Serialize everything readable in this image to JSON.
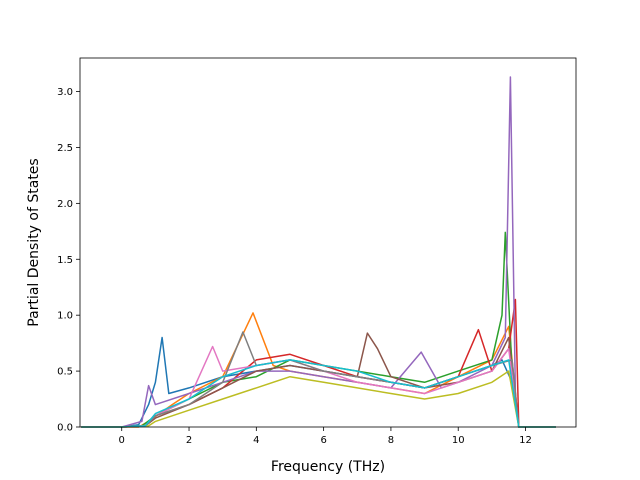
{
  "chart_data": {
    "type": "line",
    "xlabel": "Frequency (THz)",
    "ylabel": "Partial Density of States",
    "xlim": [
      -1.24,
      13.5
    ],
    "ylim": [
      0.0,
      3.3
    ],
    "x_ticks": [
      0,
      2,
      4,
      6,
      8,
      10,
      12
    ],
    "x_tick_labels": [
      "0",
      "2",
      "4",
      "6",
      "8",
      "10",
      "12"
    ],
    "y_ticks": [
      0.0,
      0.5,
      1.0,
      1.5,
      2.0,
      2.5,
      3.0
    ],
    "y_tick_labels": [
      "0.0",
      "0.5",
      "1.0",
      "1.5",
      "2.0",
      "2.5",
      "3.0"
    ],
    "grid": false,
    "legend": "none",
    "palette": [
      "#1f77b4",
      "#ff7f0e",
      "#2ca02c",
      "#d62728",
      "#9467bd",
      "#8c564b",
      "#e377c2",
      "#7f7f7f",
      "#bcbd22",
      "#17becf"
    ],
    "series": [
      {
        "x": [
          -1.2,
          0.0,
          0.5,
          0.8,
          1.0,
          1.2,
          1.4,
          2.0,
          3.0,
          4.0,
          5.0,
          6.0,
          7.0,
          8.0,
          9.0,
          10.0,
          10.5,
          11.0,
          11.3,
          11.6,
          11.8,
          12.0,
          12.9
        ],
        "y": [
          0.0,
          0.0,
          0.02,
          0.2,
          0.4,
          0.8,
          0.3,
          0.35,
          0.45,
          0.5,
          0.55,
          0.5,
          0.45,
          0.4,
          0.35,
          0.45,
          0.5,
          0.55,
          0.6,
          0.4,
          0.0,
          0.0,
          0.0
        ]
      },
      {
        "x": [
          -1.2,
          0.0,
          0.5,
          0.8,
          1.5,
          2.0,
          3.0,
          3.9,
          4.5,
          5.0,
          6.0,
          7.0,
          8.0,
          9.0,
          10.0,
          11.0,
          11.5,
          11.8,
          12.0,
          12.9
        ],
        "y": [
          0.0,
          0.0,
          0.0,
          0.05,
          0.2,
          0.3,
          0.45,
          1.02,
          0.55,
          0.5,
          0.45,
          0.4,
          0.35,
          0.3,
          0.45,
          0.6,
          0.9,
          0.0,
          0.0,
          0.0
        ]
      },
      {
        "x": [
          -1.2,
          0.0,
          0.6,
          1.0,
          2.0,
          3.0,
          4.0,
          5.0,
          6.0,
          7.0,
          8.0,
          9.0,
          10.0,
          11.0,
          11.3,
          11.4,
          11.6,
          11.8,
          12.0,
          12.9
        ],
        "y": [
          0.0,
          0.0,
          0.01,
          0.1,
          0.25,
          0.4,
          0.45,
          0.6,
          0.55,
          0.5,
          0.45,
          0.4,
          0.5,
          0.6,
          1.0,
          1.74,
          0.5,
          0.0,
          0.0,
          0.0
        ]
      },
      {
        "x": [
          -1.2,
          0.0,
          0.7,
          1.0,
          2.0,
          3.0,
          4.0,
          5.0,
          6.0,
          7.0,
          8.0,
          9.0,
          10.0,
          10.6,
          11.0,
          11.5,
          11.7,
          11.8,
          12.0,
          12.9
        ],
        "y": [
          0.0,
          0.0,
          0.01,
          0.1,
          0.2,
          0.35,
          0.6,
          0.65,
          0.55,
          0.45,
          0.4,
          0.35,
          0.45,
          0.87,
          0.5,
          0.7,
          1.14,
          0.0,
          0.0,
          0.0
        ]
      },
      {
        "x": [
          -1.2,
          0.0,
          0.6,
          0.8,
          1.0,
          2.0,
          3.0,
          4.0,
          5.0,
          6.0,
          7.0,
          8.0,
          8.9,
          9.5,
          10.0,
          11.0,
          11.4,
          11.55,
          11.7,
          11.8,
          12.0,
          12.9
        ],
        "y": [
          0.0,
          0.0,
          0.05,
          0.37,
          0.2,
          0.3,
          0.4,
          0.5,
          0.5,
          0.45,
          0.4,
          0.35,
          0.67,
          0.35,
          0.4,
          0.55,
          0.8,
          3.13,
          0.3,
          0.0,
          0.0,
          0.0
        ]
      },
      {
        "x": [
          -1.2,
          0.0,
          0.7,
          1.0,
          2.0,
          3.0,
          4.0,
          5.0,
          6.0,
          7.0,
          7.3,
          7.6,
          8.0,
          9.0,
          10.0,
          11.0,
          11.5,
          11.8,
          12.0,
          12.9
        ],
        "y": [
          0.0,
          0.0,
          0.01,
          0.08,
          0.2,
          0.35,
          0.5,
          0.55,
          0.5,
          0.45,
          0.84,
          0.7,
          0.45,
          0.35,
          0.4,
          0.5,
          0.8,
          0.0,
          0.0,
          0.0
        ]
      },
      {
        "x": [
          -1.2,
          0.0,
          0.7,
          1.0,
          2.0,
          2.7,
          3.0,
          4.0,
          5.0,
          6.0,
          7.0,
          8.0,
          9.0,
          10.0,
          11.0,
          11.5,
          11.8,
          12.0,
          12.9
        ],
        "y": [
          0.0,
          0.0,
          0.01,
          0.1,
          0.25,
          0.72,
          0.5,
          0.55,
          0.6,
          0.5,
          0.4,
          0.35,
          0.3,
          0.4,
          0.5,
          0.7,
          0.0,
          0.0,
          0.0
        ]
      },
      {
        "x": [
          -1.2,
          0.0,
          0.7,
          1.0,
          2.0,
          3.0,
          3.6,
          4.0,
          5.0,
          6.0,
          7.0,
          8.0,
          9.0,
          10.0,
          11.0,
          11.6,
          11.8,
          12.0,
          12.9
        ],
        "y": [
          0.0,
          0.0,
          0.01,
          0.1,
          0.2,
          0.4,
          0.85,
          0.55,
          0.6,
          0.5,
          0.45,
          0.4,
          0.35,
          0.45,
          0.55,
          0.6,
          0.0,
          0.0,
          0.0
        ]
      },
      {
        "x": [
          -1.2,
          0.0,
          0.8,
          1.0,
          2.0,
          3.0,
          4.0,
          5.0,
          6.0,
          7.0,
          8.0,
          9.0,
          10.0,
          11.0,
          11.5,
          11.8,
          12.0,
          12.9
        ],
        "y": [
          0.0,
          0.0,
          0.01,
          0.05,
          0.15,
          0.25,
          0.35,
          0.45,
          0.4,
          0.35,
          0.3,
          0.25,
          0.3,
          0.4,
          0.5,
          0.0,
          0.0,
          0.0
        ]
      },
      {
        "x": [
          -1.2,
          0.0,
          0.7,
          1.0,
          2.0,
          3.0,
          4.0,
          5.0,
          6.0,
          7.0,
          8.0,
          9.0,
          10.0,
          10.5,
          11.0,
          11.5,
          11.8,
          12.0,
          12.9
        ],
        "y": [
          0.0,
          0.0,
          0.01,
          0.12,
          0.25,
          0.45,
          0.55,
          0.6,
          0.55,
          0.5,
          0.4,
          0.35,
          0.45,
          0.5,
          0.55,
          0.6,
          0.0,
          0.0,
          0.0
        ]
      }
    ]
  }
}
